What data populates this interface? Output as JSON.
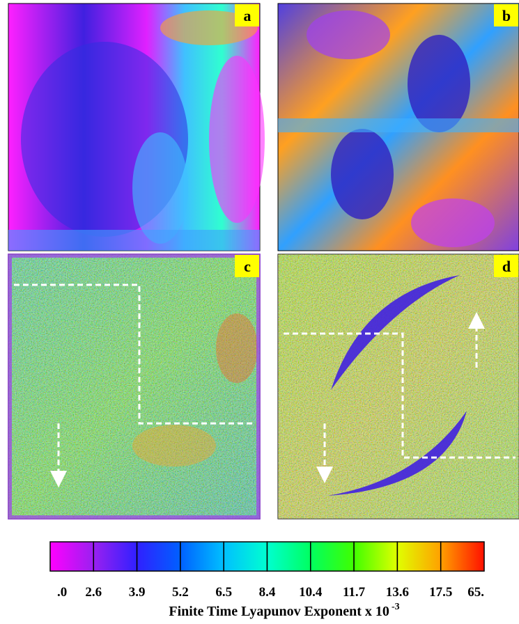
{
  "panels": [
    {
      "label": "a"
    },
    {
      "label": "b"
    },
    {
      "label": "c"
    },
    {
      "label": "d"
    }
  ],
  "colorbar": {
    "labels": [
      ".0",
      "2.6",
      "3.9",
      "5.2",
      "6.5",
      "8.4",
      "10.4",
      "11.7",
      "13.6",
      "17.5",
      "65."
    ],
    "colors": [
      "#ff00ff",
      "#9a20f0",
      "#3020ff",
      "#0060ff",
      "#00c0ff",
      "#00ffd0",
      "#00ff60",
      "#40ff00",
      "#e0ff00",
      "#ffa000",
      "#ff1000"
    ],
    "title": "Finite Time Lyapunov Exponent x 10",
    "title_exponent": "-3"
  }
}
